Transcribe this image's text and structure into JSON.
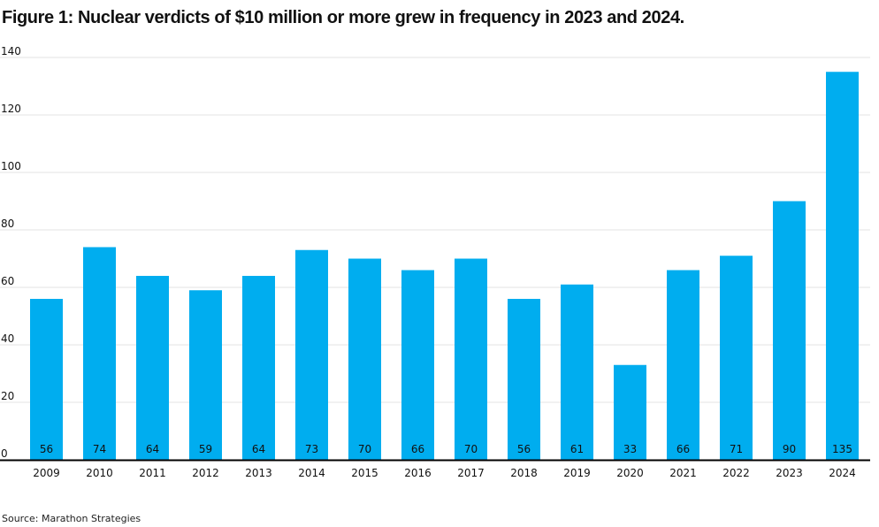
{
  "chart_data": {
    "type": "bar",
    "title": "Figure 1: Nuclear verdicts of $10 million or more grew in frequency in 2023 and 2024.",
    "source": "Source: Marathon Strategies",
    "xlabel": "",
    "ylabel": "",
    "categories": [
      "2009",
      "2010",
      "2011",
      "2012",
      "2013",
      "2014",
      "2015",
      "2016",
      "2017",
      "2018",
      "2019",
      "2020",
      "2021",
      "2022",
      "2023",
      "2024"
    ],
    "values": [
      56,
      74,
      64,
      59,
      64,
      73,
      70,
      66,
      70,
      56,
      61,
      33,
      66,
      71,
      90,
      135
    ],
    "ylim": [
      0,
      140
    ],
    "yticks": [
      0,
      20,
      40,
      60,
      80,
      100,
      120,
      140
    ],
    "grid": true,
    "data_labels": "inside-bottom",
    "colors": {
      "bar": "#00ADEF",
      "grid": "#e3e3e3",
      "axis": "#000000"
    }
  }
}
